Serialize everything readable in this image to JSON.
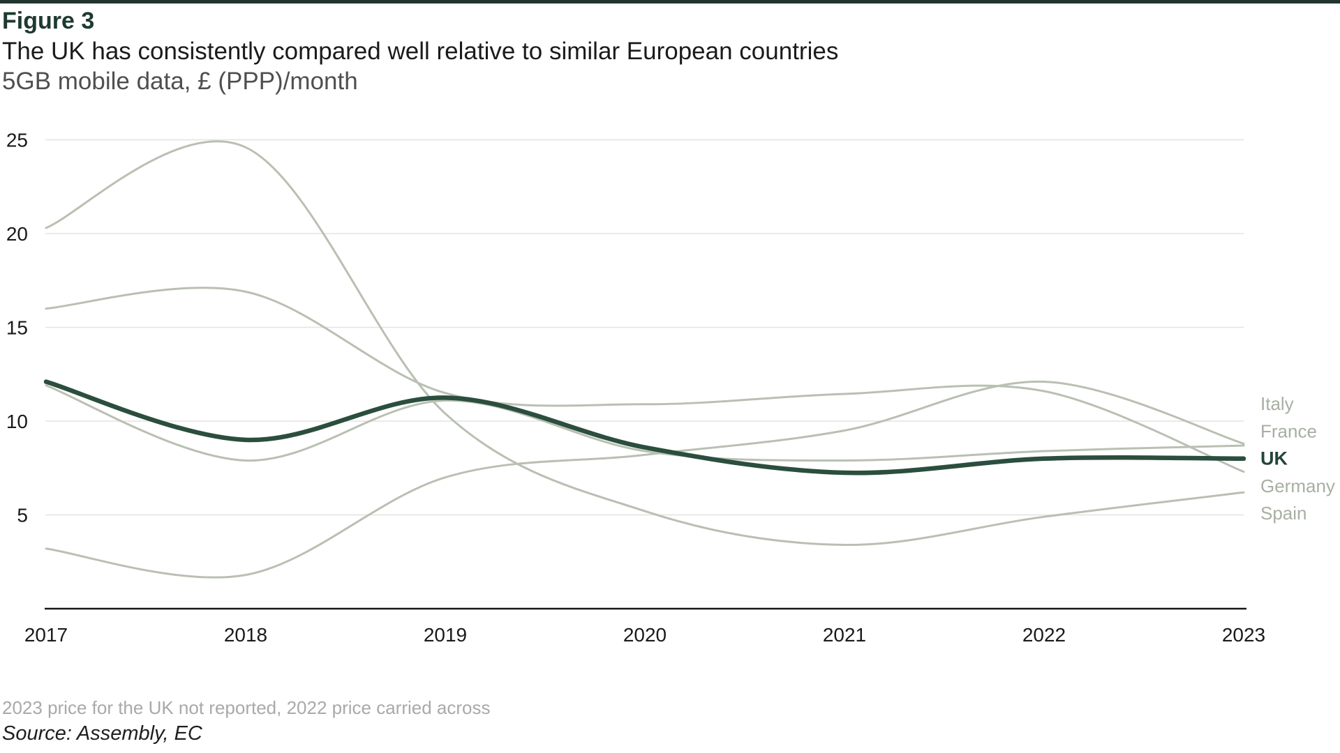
{
  "page": {
    "figure_label": "Figure 3",
    "title": "The UK has consistently compared well relative to similar European countries",
    "units_line": "5GB mobile data, £ (PPP)/month",
    "footnote": "2023 price for the UK not reported, 2022 price carried across",
    "source": "Source: Assembly, EC"
  },
  "colors": {
    "accent_uk": "#2b4e3e",
    "uk_label": "#24463a",
    "comparison_line": "#b9c0b2",
    "comparison_label": "#a6b0a2",
    "gridline": "#e3e3e3",
    "axis": "#161616",
    "tick_text": "#1a1a1a",
    "top_bar": "#213430",
    "figure_label_green": "#1e3a2f"
  },
  "chart_data": {
    "type": "line",
    "title": "The UK has consistently compared well relative to similar European countries",
    "subtitle": "5GB mobile data, £ (PPP)/month",
    "x": [
      2017,
      2018,
      2019,
      2020,
      2021,
      2022,
      2023
    ],
    "series": [
      {
        "name": "Spain",
        "values": [
          20.3,
          24.6,
          10.4,
          5.2,
          3.4,
          4.9,
          6.2
        ],
        "emphasis": false
      },
      {
        "name": "Germany",
        "values": [
          16.0,
          16.9,
          11.5,
          10.9,
          11.45,
          11.6,
          7.3
        ],
        "emphasis": false
      },
      {
        "name": "Italy",
        "values": [
          3.2,
          1.8,
          7.0,
          8.2,
          9.5,
          12.1,
          8.8
        ],
        "emphasis": false
      },
      {
        "name": "France",
        "values": [
          11.9,
          7.9,
          11.1,
          8.4,
          7.9,
          8.4,
          8.7
        ],
        "emphasis": false
      },
      {
        "name": "UK",
        "values": [
          12.1,
          9.0,
          11.25,
          8.6,
          7.25,
          8.0,
          8.0
        ],
        "emphasis": true
      }
    ],
    "ylim": [
      0,
      25
    ],
    "yticks": [
      5,
      10,
      15,
      20,
      25
    ],
    "xticks": [
      "2017",
      "2018",
      "2019",
      "2020",
      "2021",
      "2022",
      "2023"
    ],
    "grid": true,
    "legend_position": "right-end-labels",
    "label_order_top_to_bottom": [
      "Italy",
      "France",
      "UK",
      "Germany",
      "Spain"
    ],
    "smoothing": "spline"
  }
}
